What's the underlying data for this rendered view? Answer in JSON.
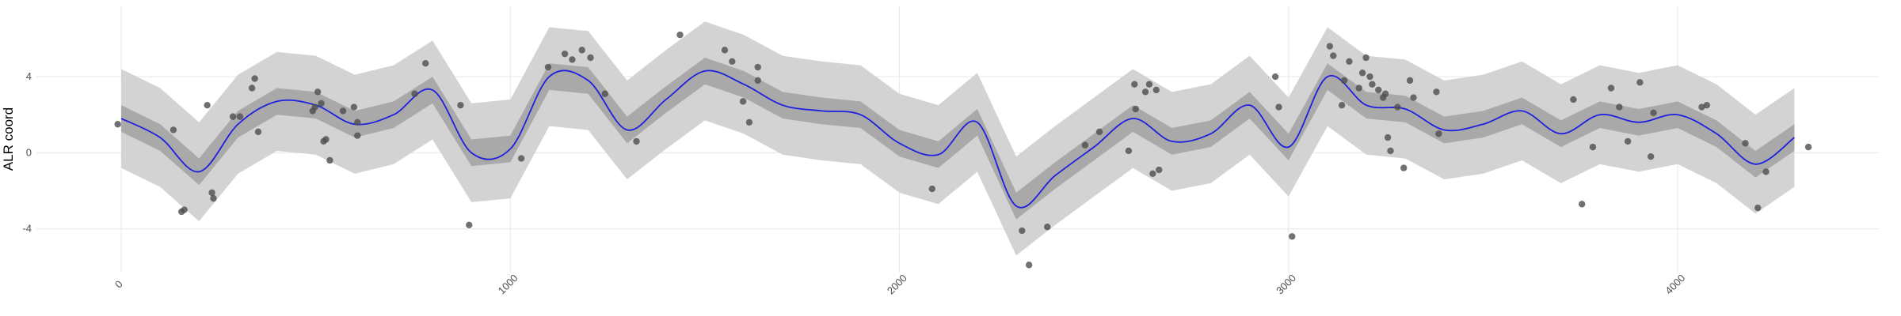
{
  "chart_data": {
    "type": "ribbon-line-scatter",
    "y_label": "ALR coord",
    "xlim": [
      -218,
      4517
    ],
    "ylim": [
      -6.3,
      7.7
    ],
    "xticks": [
      0,
      1000,
      2000,
      3000,
      4000
    ],
    "yticks": [
      -4,
      0,
      4
    ],
    "grid": true,
    "x": [
      0,
      100,
      200,
      300,
      400,
      500,
      600,
      700,
      800,
      900,
      1000,
      1100,
      1200,
      1300,
      1400,
      1500,
      1600,
      1700,
      1800,
      1900,
      2000,
      2100,
      2200,
      2300,
      2400,
      2500,
      2600,
      2700,
      2800,
      2900,
      3000,
      3100,
      3200,
      3300,
      3400,
      3500,
      3600,
      3700,
      3800,
      3900,
      4000,
      4100,
      4200,
      4300
    ],
    "ribbons": [
      {
        "color": "#d3d3d3",
        "lower": [
          -0.8,
          -1.8,
          -3.6,
          -1.1,
          0.1,
          -0.1,
          -1.1,
          -0.6,
          0.7,
          -2.6,
          -2.4,
          1.4,
          1.2,
          -1.4,
          0.2,
          1.7,
          1.0,
          -0.1,
          -0.4,
          -0.6,
          -2.1,
          -2.7,
          -1.0,
          -5.4,
          -3.8,
          -2.3,
          -0.8,
          -2.0,
          -1.6,
          -0.1,
          -2.3,
          1.4,
          -0.1,
          -0.3,
          -1.4,
          -1.1,
          -0.4,
          -1.6,
          -0.6,
          -1.0,
          -0.6,
          -1.6,
          -3.2,
          -1.8
        ],
        "upper": [
          4.4,
          3.4,
          1.6,
          4.1,
          5.3,
          5.1,
          4.1,
          4.6,
          5.9,
          2.6,
          2.8,
          6.6,
          6.4,
          3.8,
          5.4,
          6.9,
          6.2,
          5.1,
          4.8,
          4.6,
          3.1,
          2.5,
          4.2,
          -0.2,
          1.4,
          2.9,
          4.4,
          3.2,
          3.6,
          5.1,
          2.9,
          6.6,
          5.1,
          4.9,
          3.8,
          4.1,
          4.8,
          3.6,
          4.6,
          4.2,
          4.6,
          3.6,
          2.0,
          3.4
        ]
      },
      {
        "color": "#a9a9a9",
        "lower": [
          1.1,
          0.1,
          -1.7,
          0.8,
          2.0,
          1.8,
          0.8,
          1.3,
          2.6,
          -0.7,
          -0.5,
          3.3,
          3.1,
          0.5,
          2.1,
          3.6,
          2.9,
          1.8,
          1.5,
          1.3,
          -0.2,
          -0.8,
          0.9,
          -3.5,
          -1.9,
          -0.4,
          1.1,
          -0.1,
          0.3,
          1.8,
          -0.4,
          3.3,
          1.8,
          1.6,
          0.5,
          0.8,
          1.5,
          0.3,
          1.3,
          0.9,
          1.3,
          0.3,
          -1.3,
          0.1
        ],
        "upper": [
          2.5,
          1.5,
          -0.3,
          2.2,
          3.4,
          3.2,
          2.2,
          2.7,
          4.0,
          0.7,
          0.9,
          4.7,
          4.5,
          1.9,
          3.5,
          5.0,
          4.3,
          3.2,
          2.9,
          2.7,
          1.2,
          0.6,
          2.3,
          -2.1,
          -0.5,
          1.0,
          2.5,
          1.3,
          1.7,
          3.2,
          1.0,
          4.7,
          3.2,
          3.0,
          1.9,
          2.2,
          2.9,
          1.7,
          2.7,
          2.3,
          2.7,
          1.7,
          0.1,
          1.5
        ]
      }
    ],
    "line": {
      "color": "#1f1fe0",
      "values": [
        1.8,
        0.8,
        -1.0,
        1.5,
        2.7,
        2.5,
        1.5,
        2.0,
        3.3,
        0.0,
        0.2,
        4.0,
        3.8,
        1.2,
        2.8,
        4.3,
        3.6,
        2.5,
        2.2,
        2.0,
        0.5,
        -0.1,
        1.6,
        -2.8,
        -1.2,
        0.3,
        1.8,
        0.6,
        1.0,
        2.5,
        0.3,
        4.0,
        2.5,
        2.3,
        1.2,
        1.5,
        2.2,
        1.0,
        2.0,
        1.6,
        2.0,
        1.0,
        -0.6,
        0.8
      ]
    },
    "points": {
      "color": "#4d4d4d",
      "x": [
        -9,
        134,
        155,
        162,
        221,
        233,
        237,
        287,
        305,
        336,
        343,
        352,
        492,
        498,
        505,
        514,
        520,
        526,
        536,
        570,
        598,
        607,
        607,
        754,
        782,
        872,
        894,
        1028,
        1097,
        1140,
        1159,
        1184,
        1206,
        1243,
        1324,
        1436,
        1551,
        1570,
        1598,
        1614,
        1636,
        1636,
        2084,
        2315,
        2333,
        2380,
        2477,
        2514,
        2589,
        2604,
        2607,
        2632,
        2642,
        2651,
        2660,
        2667,
        2966,
        2975,
        3009,
        3106,
        3115,
        3137,
        3143,
        3156,
        3181,
        3190,
        3199,
        3209,
        3215,
        3231,
        3243,
        3249,
        3255,
        3262,
        3280,
        3296,
        3312,
        3321,
        3380,
        3386,
        3732,
        3754,
        3782,
        3829,
        3850,
        3872,
        3903,
        3931,
        3938,
        4062,
        4075,
        4174,
        4206,
        4227,
        4336
      ],
      "y": [
        1.5,
        1.2,
        -3.1,
        -3.0,
        2.5,
        -2.1,
        -2.4,
        1.9,
        1.9,
        3.4,
        3.9,
        1.1,
        2.2,
        2.4,
        3.2,
        2.6,
        0.6,
        0.7,
        -0.4,
        2.2,
        2.4,
        1.6,
        0.9,
        3.1,
        4.7,
        2.5,
        -3.8,
        -0.3,
        4.5,
        5.2,
        4.9,
        5.4,
        5.0,
        3.1,
        0.6,
        6.2,
        5.4,
        4.8,
        2.7,
        1.6,
        4.5,
        3.8,
        -1.9,
        -4.1,
        -5.9,
        -3.9,
        0.4,
        1.1,
        0.1,
        3.6,
        2.3,
        3.2,
        3.6,
        -1.1,
        3.3,
        -0.9,
        4.0,
        2.4,
        -4.4,
        5.6,
        5.1,
        2.5,
        3.8,
        4.8,
        3.4,
        4.2,
        5.0,
        4.0,
        3.6,
        3.3,
        2.9,
        3.1,
        0.8,
        0.1,
        2.4,
        -0.8,
        3.8,
        2.9,
        3.2,
        1.0,
        2.8,
        -2.7,
        0.3,
        3.4,
        2.4,
        0.6,
        3.7,
        -0.2,
        2.1,
        2.4,
        2.5,
        0.5,
        -2.9,
        -1.0,
        0.3
      ]
    }
  }
}
